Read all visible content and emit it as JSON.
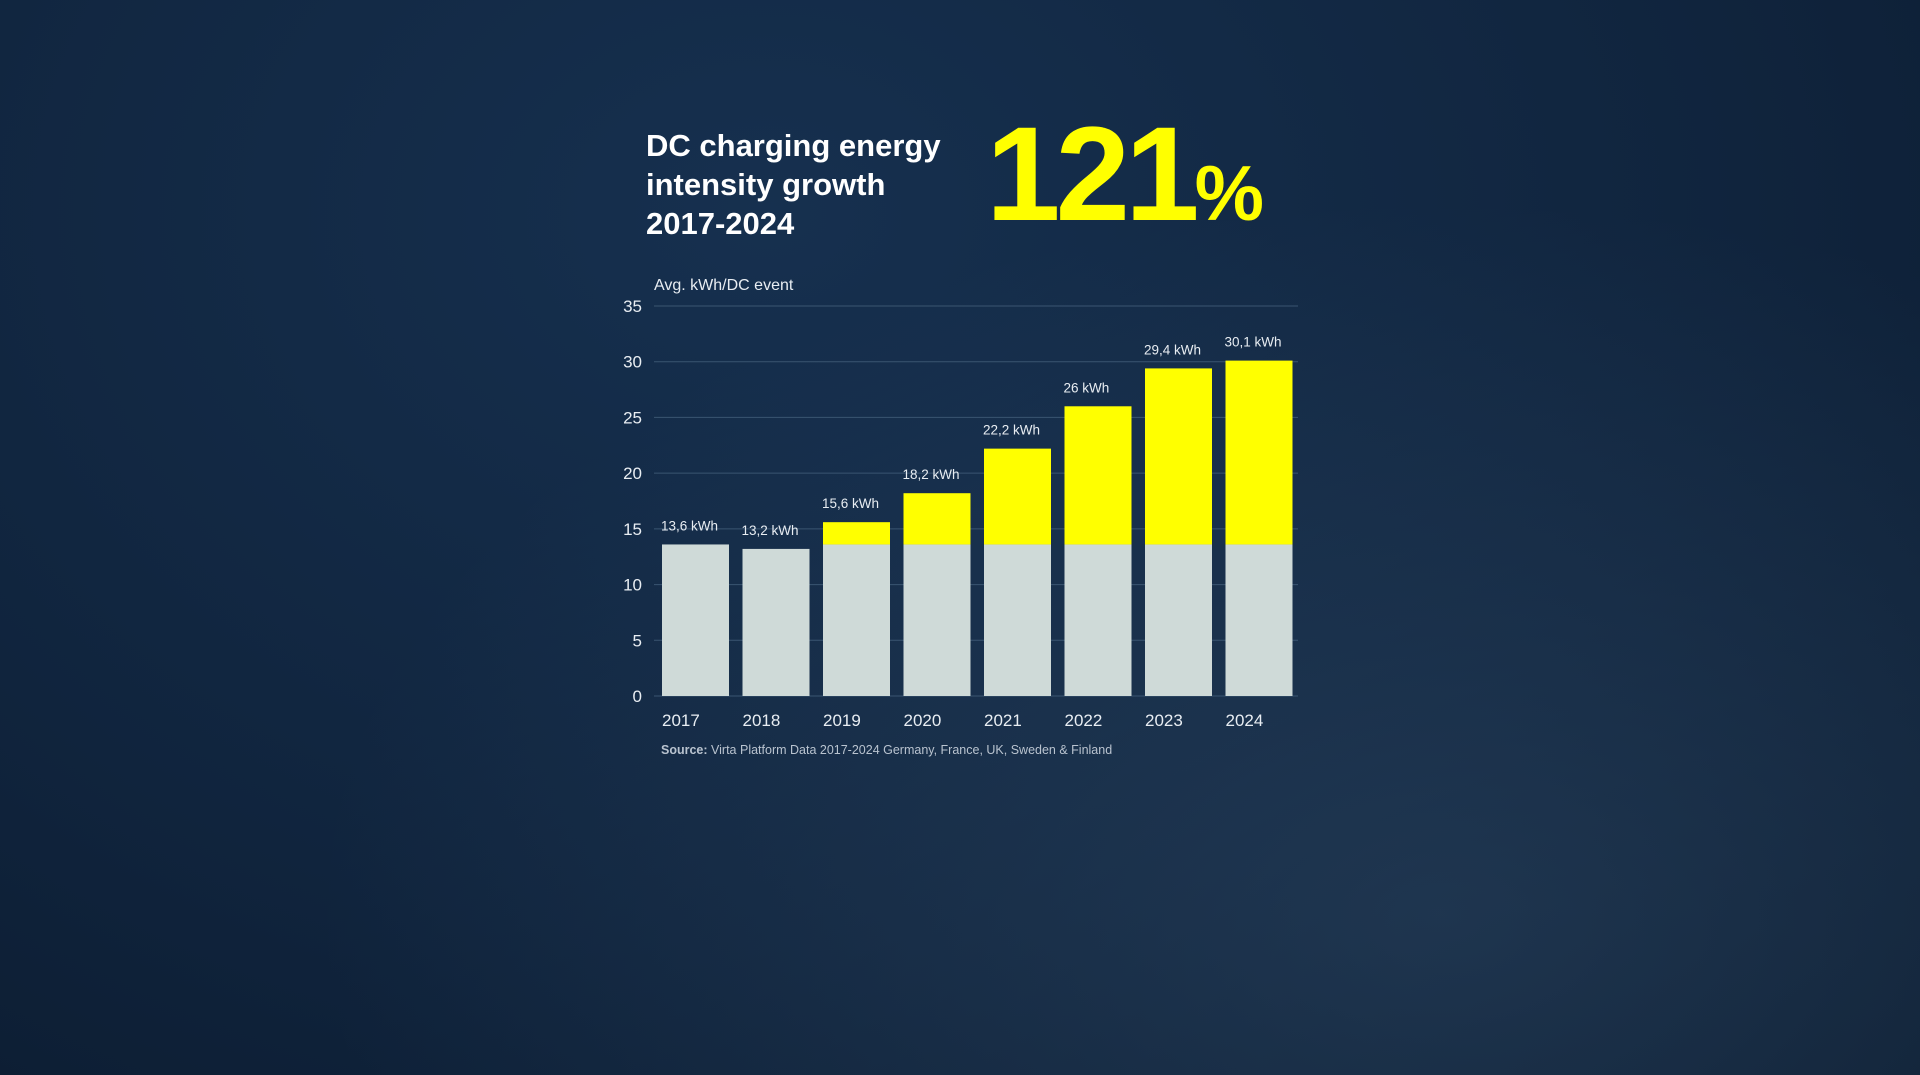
{
  "headline": {
    "lines": [
      "DC charging energy",
      "intensity growth",
      "2017-2024"
    ]
  },
  "stat": {
    "value": "121",
    "unit": "%"
  },
  "source": {
    "label": "Source:",
    "text": "Virta Platform Data 2017-2024 Germany, France, UK, Sweden & Finland"
  },
  "colors": {
    "background": "#10243d",
    "accent": "#ffff00",
    "baseline_bar": "#cfdad8",
    "text": "#ffffff",
    "grid": "#3a5571"
  },
  "chart_data": {
    "type": "bar",
    "stacked": true,
    "ylabel": "Avg. kWh/DC event",
    "ylim": [
      0,
      35
    ],
    "yticks": [
      0,
      5,
      10,
      15,
      20,
      25,
      30,
      35
    ],
    "grid": true,
    "categories": [
      "2017",
      "2018",
      "2019",
      "2020",
      "2021",
      "2022",
      "2023",
      "2024"
    ],
    "values": [
      13.6,
      13.2,
      15.6,
      18.2,
      22.2,
      26,
      29.4,
      30.1
    ],
    "value_labels": [
      "13,6 kWh",
      "13,2 kWh",
      "15,6 kWh",
      "18,2 kWh",
      "22,2 kWh",
      "26 kWh",
      "29,4 kWh",
      "30,1 kWh"
    ],
    "baseline": 13.6,
    "series": [
      {
        "values": [
          13.6,
          13.2,
          13.6,
          13.6,
          13.6,
          13.6,
          13.6,
          13.6
        ],
        "color": "#cfdad8"
      },
      {
        "values": [
          0,
          0,
          2.0,
          4.6,
          8.6,
          12.4,
          15.8,
          16.5
        ],
        "color": "#ffff00"
      }
    ]
  }
}
